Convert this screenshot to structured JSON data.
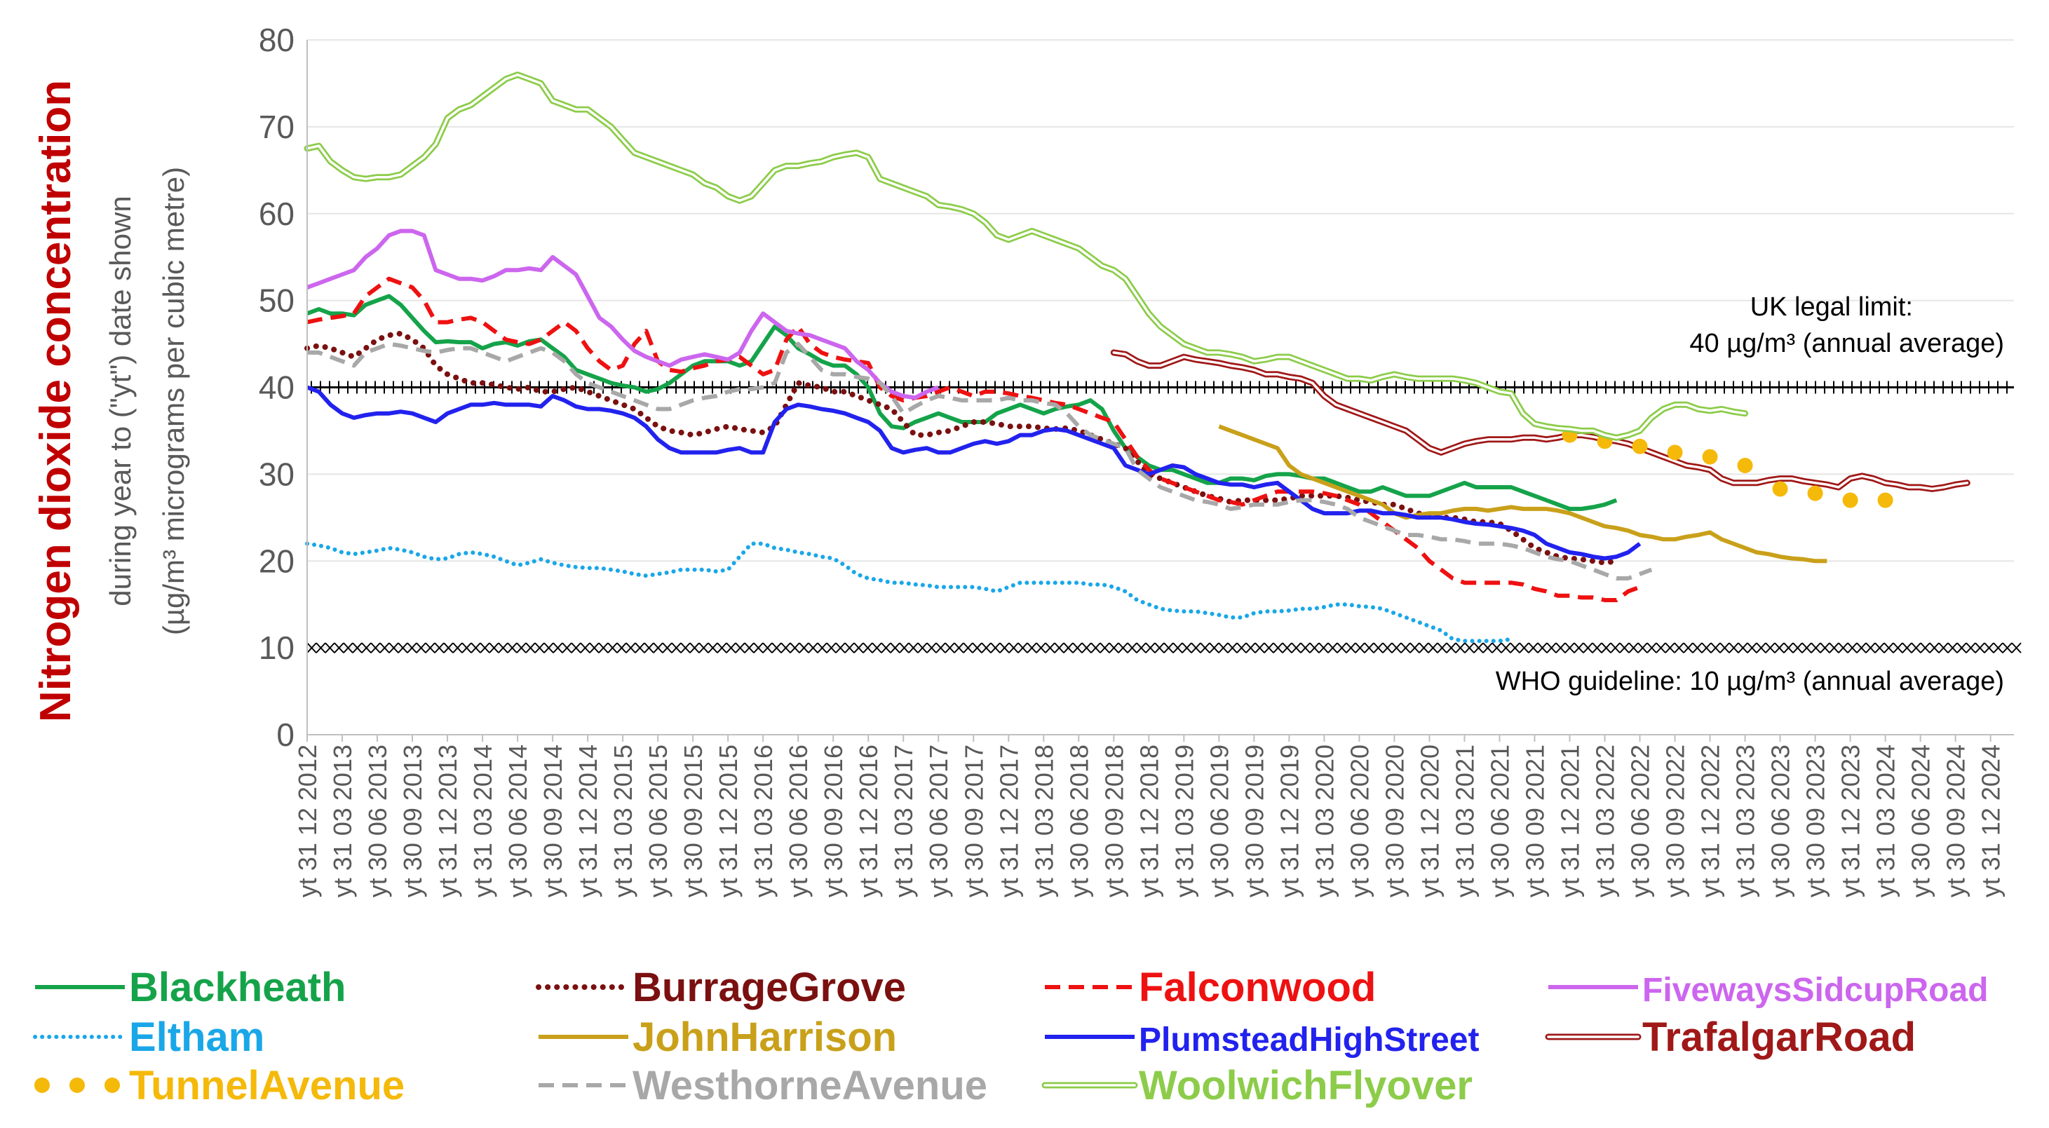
{
  "chart_data": {
    "type": "line",
    "title": "Nitrogen dioxide concentration",
    "subtitle": "during year to (\"yt\") date shown",
    "ylabel": "(µg/m³ micrograms per cubic metre)",
    "ylim": [
      0,
      80
    ],
    "yticks": [
      0,
      10,
      20,
      30,
      40,
      50,
      60,
      70,
      80
    ],
    "grid": true,
    "legend_position": "bottom",
    "x_start": "2012-12",
    "x_end": "2025-02",
    "xtick_labels": [
      "yt 31 12 2012",
      "yt 31 03 2013",
      "yt 30 06 2013",
      "yt 30 09 2013",
      "yt 31 12 2013",
      "yt 31 03 2014",
      "yt 30 06 2014",
      "yt 30 09 2014",
      "yt 31 12 2014",
      "yt 31 03 2015",
      "yt 30 06 2015",
      "yt 30 09 2015",
      "yt 31 12 2015",
      "yt 31 03 2016",
      "yt 30 06 2016",
      "yt 30 09 2016",
      "yt 31 12 2016",
      "yt 31 03 2017",
      "yt 30 06 2017",
      "yt 30 09 2017",
      "yt 31 12 2017",
      "yt 31 03 2018",
      "yt 30 06 2018",
      "yt 30 09 2018",
      "yt 31 12 2018",
      "yt 31 03 2019",
      "yt 30 06 2019",
      "yt 30 09 2019",
      "yt 31 12 2019",
      "yt 31 03 2020",
      "yt 30 06 2020",
      "yt 30 09 2020",
      "yt 31 12 2020",
      "yt 31 03 2021",
      "yt 30 06 2021",
      "yt 30 09 2021",
      "yt 31 12 2021",
      "yt 31 03 2022",
      "yt 30 06 2022",
      "yt 30 09 2022",
      "yt 31 12 2022",
      "yt 31 03 2023",
      "yt 30 06 2023",
      "yt 30 09 2023",
      "yt 31 12 2023",
      "yt 31 03 2024",
      "yt 30 06 2024",
      "yt 30 09 2024",
      "yt 31 12 2024"
    ],
    "reference_lines": [
      {
        "value": 40,
        "label_line1": "UK legal limit:",
        "label_line2": "40 µg/m³ (annual average)",
        "color": "#000000"
      },
      {
        "value": 10,
        "label_line1": "WHO guideline: 10 µg/m³ (annual average)",
        "color": "#000000"
      }
    ],
    "series": [
      {
        "name": "Blackheath",
        "color": "#15a34a",
        "style": "solid",
        "start": "2012-12",
        "values": [
          48.5,
          49,
          48.5,
          48.5,
          48.3,
          49.5,
          50,
          50.5,
          49.5,
          48,
          46.5,
          45.2,
          45.3,
          45.2,
          45.2,
          44.5,
          45,
          45.2,
          44.8,
          45.3,
          45.5,
          44.5,
          43.5,
          42,
          41.5,
          41,
          40.5,
          40.2,
          40,
          39.5,
          39.8,
          40.5,
          41.5,
          42.5,
          43,
          43,
          43,
          42.5,
          43,
          45,
          47,
          46,
          44.5,
          43.8,
          43,
          42.5,
          42.5,
          41.5,
          40,
          37,
          35.5,
          35.3,
          36,
          36.5,
          37,
          36.5,
          36,
          36,
          36,
          37,
          37.5,
          38,
          37.5,
          37,
          37.5,
          37.8,
          38,
          38.5,
          37.5,
          35,
          33,
          32,
          31,
          30.5,
          30.5,
          30,
          29.5,
          29,
          29,
          29.5,
          29.5,
          29.3,
          29.8,
          30,
          30,
          29.8,
          29.5,
          29.5,
          29,
          28.5,
          28,
          28,
          28.5,
          28,
          27.5,
          27.5,
          27.5,
          28,
          28.5,
          29,
          28.5,
          28.5,
          28.5,
          28.5,
          28,
          27.5,
          27,
          26.5,
          26,
          26,
          26.2,
          26.5,
          27
        ]
      },
      {
        "name": "BurrageGrove",
        "color": "#7b1010",
        "style": "dotted",
        "start": "2012-12",
        "values": [
          44.5,
          44.8,
          44.5,
          44,
          43.5,
          44.5,
          45.5,
          46,
          46.2,
          45.5,
          44.5,
          42.5,
          41.5,
          41,
          40.5,
          40.5,
          40.3,
          40,
          39.8,
          40,
          39.5,
          39.5,
          39.8,
          40,
          39.5,
          39,
          38.5,
          38,
          37.5,
          36.5,
          35.5,
          35,
          34.8,
          34.5,
          34.8,
          35.2,
          35.5,
          35.2,
          35,
          34.8,
          35.5,
          38,
          40.5,
          40.2,
          40,
          39.5,
          39.5,
          39,
          38.5,
          38,
          37.5,
          36,
          34.5,
          34.5,
          34.8,
          35,
          35.5,
          36,
          36,
          35.8,
          35.5,
          35.5,
          35.5,
          35.3,
          35.2,
          35.3,
          35,
          34.5,
          34,
          33.5,
          33,
          31.5,
          30,
          29.5,
          29,
          28.5,
          28,
          27.5,
          27.2,
          26.8,
          27,
          27,
          27,
          27,
          27.2,
          27.5,
          27.5,
          27.5,
          27.5,
          27.3,
          27,
          26.8,
          26.5,
          26.5,
          26,
          25.5,
          25.3,
          25,
          25,
          24.8,
          24.5,
          24.5,
          24.3,
          23.5,
          22.5,
          21.5,
          21,
          20.5,
          20.3,
          20.2,
          20,
          19.8,
          20
        ]
      },
      {
        "name": "Falconwood",
        "color": "#ee1111",
        "style": "dashed",
        "start": "2012-12",
        "values": [
          47.5,
          47.8,
          48,
          48.2,
          48.5,
          50.5,
          51.5,
          52.5,
          52,
          51.5,
          50,
          47.5,
          47.5,
          47.8,
          48,
          47.5,
          46.5,
          45.5,
          45.2,
          45,
          45.5,
          46.5,
          47.5,
          46.5,
          44.5,
          43,
          42,
          42.5,
          45,
          46.5,
          43,
          42,
          41.8,
          42.2,
          42.5,
          43,
          43.2,
          43.5,
          42.5,
          41.5,
          42,
          45.5,
          47,
          45,
          44,
          43.5,
          43.2,
          43,
          42.8,
          40,
          39,
          38.5,
          38.8,
          39,
          39.5,
          40,
          39.5,
          39,
          39.5,
          39.5,
          39.3,
          39,
          38.8,
          38.5,
          38.2,
          38,
          37.5,
          37,
          36.5,
          36,
          34,
          32,
          30.5,
          29.5,
          29,
          28.5,
          28,
          27.5,
          27,
          26.8,
          26.5,
          27,
          27.5,
          28,
          28,
          28,
          28,
          27.8,
          27.5,
          27,
          26.5,
          25.5,
          24.5,
          23.5,
          22.5,
          21.5,
          20,
          19,
          18,
          17.5,
          17.5,
          17.5,
          17.5,
          17.5,
          17.3,
          16.8,
          16.5,
          16,
          16,
          15.8,
          15.8,
          15.5,
          15.5,
          16.5,
          17
        ]
      },
      {
        "name": "FivewaysSidcupRoad",
        "color": "#cc66ee",
        "style": "solid",
        "start": "2012-12",
        "values": [
          51.5,
          52,
          52.5,
          53,
          53.5,
          55,
          56,
          57.5,
          58,
          58,
          57.5,
          53.5,
          53,
          52.5,
          52.5,
          52.3,
          52.8,
          53.5,
          53.5,
          53.7,
          53.5,
          55,
          54,
          53,
          50.5,
          48,
          47,
          45.5,
          44.2,
          43.5,
          43,
          42.5,
          43.2,
          43.5,
          43.8,
          43.5,
          43.2,
          44,
          46.5,
          48.5,
          47.5,
          46.5,
          46.2,
          46,
          45.5,
          45,
          44.5,
          43,
          42,
          40.5,
          39.5,
          39,
          38.8,
          39.5,
          40
        ]
      },
      {
        "name": "Eltham",
        "color": "#1aa7e8",
        "style": "dotted",
        "start": "2012-12",
        "values": [
          22,
          21.8,
          21.5,
          21,
          20.8,
          21,
          21.2,
          21.5,
          21.3,
          21,
          20.5,
          20.2,
          20.3,
          20.8,
          21,
          20.8,
          20.5,
          20,
          19.5,
          19.8,
          20.2,
          19.8,
          19.5,
          19.3,
          19.2,
          19.2,
          19,
          18.8,
          18.5,
          18.3,
          18.5,
          18.7,
          19,
          19,
          19,
          18.8,
          19,
          20.5,
          22,
          22,
          21.5,
          21.3,
          21,
          20.8,
          20.5,
          20.3,
          19.5,
          18.5,
          18,
          17.8,
          17.5,
          17.5,
          17.3,
          17.2,
          17,
          17,
          17,
          17,
          16.8,
          16.5,
          17,
          17.5,
          17.5,
          17.5,
          17.5,
          17.5,
          17.5,
          17.3,
          17.3,
          17,
          16.5,
          15.5,
          15,
          14.5,
          14.3,
          14.2,
          14.2,
          14,
          13.8,
          13.5,
          13.5,
          14,
          14.2,
          14.2,
          14.3,
          14.5,
          14.5,
          14.7,
          15,
          15,
          14.8,
          14.7,
          14.5,
          14,
          13.5,
          13,
          12.5,
          12,
          11,
          10.8,
          10.8,
          10.8,
          10.8,
          11
        ]
      },
      {
        "name": "JohnHarrison",
        "color": "#c9a01a",
        "style": "solid",
        "start": "2019-06",
        "values": [
          35.5,
          35,
          34.5,
          34,
          33.5,
          33,
          31,
          30,
          29.5,
          29,
          28.5,
          28,
          27.5,
          27,
          26.5,
          25.5,
          25,
          25.3,
          25.5,
          25.5,
          25.8,
          26,
          26,
          25.8,
          26,
          26.2,
          26,
          26,
          26,
          25.8,
          25.5,
          25,
          24.5,
          24,
          23.8,
          23.5,
          23,
          22.8,
          22.5,
          22.5,
          22.8,
          23,
          23.3,
          22.5,
          22,
          21.5,
          21,
          20.8,
          20.5,
          20.3,
          20.2,
          20,
          20
        ]
      },
      {
        "name": "PlumsteadHighStreet",
        "color": "#2222ee",
        "style": "solid",
        "start": "2012-12",
        "values": [
          40,
          39.5,
          38,
          37,
          36.5,
          36.8,
          37,
          37,
          37.2,
          37,
          36.5,
          36,
          37,
          37.5,
          38,
          38,
          38.2,
          38,
          38,
          38,
          37.8,
          39,
          38.5,
          37.8,
          37.5,
          37.5,
          37.3,
          37,
          36.5,
          35.5,
          34,
          33,
          32.5,
          32.5,
          32.5,
          32.5,
          32.8,
          33,
          32.5,
          32.5,
          36,
          37.5,
          38,
          37.8,
          37.5,
          37.3,
          37,
          36.5,
          36,
          35,
          33,
          32.5,
          32.8,
          33,
          32.5,
          32.5,
          33,
          33.5,
          33.8,
          33.5,
          33.8,
          34.5,
          34.5,
          35,
          35.2,
          35,
          34.5,
          34,
          33.5,
          33,
          31,
          30.5,
          30,
          30.5,
          31,
          30.8,
          30,
          29.5,
          29,
          28.8,
          28.8,
          28.5,
          28.8,
          29,
          28,
          27,
          26,
          25.5,
          25.5,
          25.5,
          25.8,
          25.8,
          25.5,
          25.5,
          25.3,
          25,
          25,
          25,
          24.8,
          24.5,
          24.3,
          24.2,
          24,
          23.8,
          23.5,
          23,
          22,
          21.5,
          21,
          20.8,
          20.5,
          20.3,
          20.5,
          21,
          22
        ]
      },
      {
        "name": "TrafalgarRoad",
        "color": "#a01818",
        "style": "double",
        "start": "2018-09",
        "values": [
          44,
          43.8,
          43,
          42.5,
          42.5,
          43,
          43.5,
          43.2,
          43,
          42.8,
          42.5,
          42.3,
          42,
          41.5,
          41.5,
          41.2,
          41,
          40.5,
          39,
          38,
          37.5,
          37,
          36.5,
          36,
          35.5,
          35,
          34,
          33,
          32.5,
          33,
          33.5,
          33.8,
          34,
          34,
          34,
          34.2,
          34.2,
          34,
          34.2,
          34.5,
          34.5,
          34.3,
          34,
          33.8,
          33.5,
          33,
          32.5,
          32,
          31.5,
          31,
          30.8,
          30.5,
          29.5,
          29,
          29,
          29,
          29.3,
          29.5,
          29.5,
          29.2,
          29,
          28.8,
          28.5,
          29.5,
          29.8,
          29.5,
          29,
          28.8,
          28.5,
          28.5,
          28.3,
          28.5,
          28.8,
          29
        ]
      },
      {
        "name": "TunnelAvenue",
        "color": "#f5b90a",
        "style": "dots",
        "start": "2021-12",
        "values": [
          34.5,
          null,
          null,
          33.8,
          null,
          null,
          33.2,
          null,
          null,
          32.5,
          null,
          null,
          32,
          null,
          null,
          31,
          null,
          null,
          28.3,
          null,
          null,
          27.8,
          null,
          null,
          27,
          null,
          null,
          27
        ]
      },
      {
        "name": "WesthorneAvenue",
        "color": "#a8a8a8",
        "style": "dashed",
        "start": "2012-12",
        "values": [
          44,
          44,
          43.5,
          43,
          42.5,
          44,
          44.5,
          45,
          44.8,
          44.5,
          44.2,
          44,
          44.3,
          44.5,
          44.5,
          44,
          43.5,
          43,
          43.5,
          44,
          44.5,
          44,
          43,
          41.5,
          40.5,
          40,
          39.5,
          39,
          38.5,
          38,
          37.5,
          37.5,
          38,
          38.5,
          38.8,
          39,
          39.5,
          39.8,
          39.8,
          40,
          40.5,
          44,
          45,
          43.5,
          42,
          41.5,
          41.5,
          41.2,
          41,
          40.5,
          39,
          37,
          37.8,
          38.5,
          39,
          38.8,
          38.5,
          38.5,
          38.5,
          38.5,
          38.8,
          38.5,
          38.5,
          38.2,
          38,
          37,
          35.5,
          34.5,
          34,
          33.5,
          33,
          30.5,
          29.5,
          28.5,
          28,
          27.5,
          27,
          26.8,
          26.5,
          26,
          26.2,
          26.5,
          26.5,
          26.5,
          26.8,
          27,
          27,
          26.8,
          26.5,
          26,
          25,
          24.5,
          24,
          23.5,
          23,
          23,
          22.8,
          22.5,
          22.5,
          22.3,
          22,
          22,
          22,
          21.8,
          21.5,
          21,
          20.5,
          20.2,
          20,
          19.5,
          19,
          18.5,
          18,
          18,
          18.5,
          19
        ]
      },
      {
        "name": "WoolwichFlyover",
        "color": "#8ccc4a",
        "style": "double",
        "start": "2012-12",
        "values": [
          67.5,
          67.8,
          66,
          65,
          64.2,
          64,
          64.2,
          64.2,
          64.5,
          65.5,
          66.5,
          68,
          71,
          72,
          72.5,
          73.5,
          74.5,
          75.5,
          76,
          75.5,
          75,
          73,
          72.5,
          72,
          72,
          71,
          70,
          68.5,
          67,
          66.5,
          66,
          65.5,
          65,
          64.5,
          63.5,
          63,
          62,
          61.5,
          62,
          63.5,
          65,
          65.5,
          65.5,
          65.8,
          66,
          66.5,
          66.8,
          67,
          66.5,
          64,
          63.5,
          63,
          62.5,
          62,
          61,
          60.8,
          60.5,
          60,
          59,
          57.5,
          57,
          57.5,
          58,
          57.5,
          57,
          56.5,
          56,
          55,
          54,
          53.5,
          52.5,
          50.5,
          48.5,
          47,
          46,
          45,
          44.5,
          44,
          44,
          43.8,
          43.5,
          43,
          43.2,
          43.5,
          43.5,
          43,
          42.5,
          42,
          41.5,
          41,
          41,
          40.8,
          41.2,
          41.5,
          41.2,
          41,
          41,
          41,
          41,
          40.8,
          40.5,
          40,
          39.5,
          39.3,
          37,
          35.8,
          35.5,
          35.3,
          35.2,
          35,
          35,
          34.5,
          34.2,
          34.5,
          35,
          36.5,
          37.5,
          38,
          38,
          37.5,
          37.3,
          37.5,
          37.2,
          37
        ]
      }
    ]
  }
}
